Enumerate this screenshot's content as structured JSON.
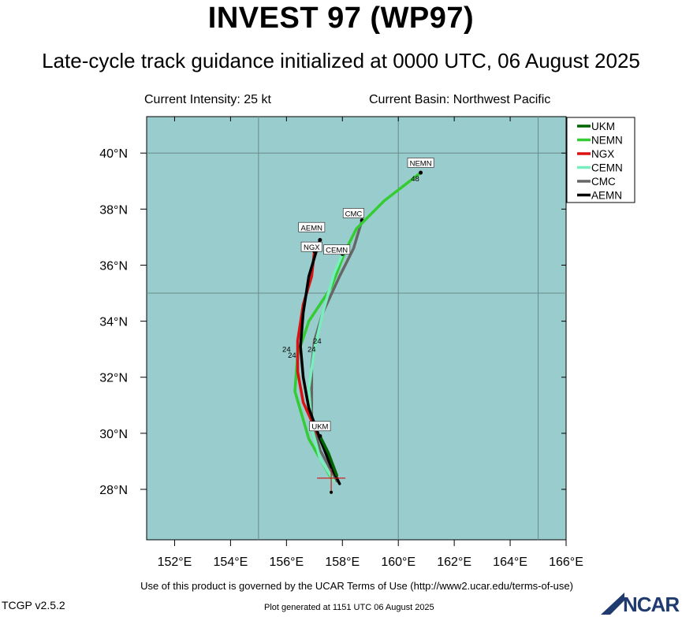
{
  "header": {
    "title": "INVEST 97 (WP97)",
    "subtitle": "Late-cycle track guidance initialized at 0000 UTC, 06 August 2025",
    "intensity": "Current Intensity: 25 kt",
    "basin": "Current Basin: Northwest Pacific"
  },
  "map": {
    "lon_range": [
      151,
      166
    ],
    "lat_range": [
      26.2,
      41.3
    ],
    "lon_ticks": [
      "152°E",
      "154°E",
      "156°E",
      "158°E",
      "160°E",
      "162°E",
      "164°E",
      "166°E"
    ],
    "lat_ticks": [
      "28°N",
      "30°N",
      "32°N",
      "34°N",
      "36°N",
      "38°N",
      "40°N"
    ],
    "ocean_color": "#99cccc",
    "grid_lines_lon": [
      155,
      160,
      165
    ],
    "grid_lines_lat": [
      35,
      40
    ],
    "storm_position": {
      "lon": 157.6,
      "lat": 28.4
    }
  },
  "legend": [
    {
      "name": "UKM",
      "color": "#006400"
    },
    {
      "name": "NEMN",
      "color": "#33cc33"
    },
    {
      "name": "NGX",
      "color": "#dd1111"
    },
    {
      "name": "CEMN",
      "color": "#77eebb"
    },
    {
      "name": "CMC",
      "color": "#666666"
    },
    {
      "name": "AEMN",
      "color": "#000000"
    }
  ],
  "tracks": [
    {
      "name": "CMC",
      "color": "#666666",
      "points": [
        [
          157.8,
          28.3
        ],
        [
          157.2,
          29.4
        ],
        [
          156.9,
          30.6
        ],
        [
          156.9,
          32.4
        ],
        [
          157.0,
          33.3
        ],
        [
          157.3,
          34.3
        ],
        [
          157.9,
          35.6
        ],
        [
          158.4,
          36.6
        ],
        [
          158.7,
          37.6
        ]
      ]
    },
    {
      "name": "NEMN",
      "color": "#33cc33",
      "points": [
        [
          157.6,
          28.4
        ],
        [
          156.8,
          29.8
        ],
        [
          156.3,
          31.5
        ],
        [
          156.4,
          32.8
        ],
        [
          156.8,
          34.0
        ],
        [
          157.6,
          35.2
        ],
        [
          158.1,
          36.5
        ],
        [
          158.5,
          37.3
        ],
        [
          159.5,
          38.3
        ],
        [
          160.8,
          39.3
        ]
      ],
      "label_hour": "48"
    },
    {
      "name": "CEMN",
      "color": "#77eebb",
      "points": [
        [
          157.7,
          28.3
        ],
        [
          157.2,
          29.1
        ],
        [
          156.9,
          30.2
        ],
        [
          156.8,
          31.6
        ],
        [
          157.0,
          33.0
        ],
        [
          157.3,
          34.3
        ],
        [
          157.7,
          35.7
        ],
        [
          158.0,
          36.4
        ]
      ]
    },
    {
      "name": "NGX",
      "color": "#dd1111",
      "points": [
        [
          157.8,
          28.4
        ],
        [
          157.5,
          29.2
        ],
        [
          157.1,
          30.0
        ],
        [
          156.6,
          31.1
        ],
        [
          156.4,
          32.2
        ],
        [
          156.4,
          33.3
        ],
        [
          156.6,
          34.6
        ],
        [
          156.9,
          35.6
        ],
        [
          157.0,
          36.5
        ]
      ]
    },
    {
      "name": "AEMN",
      "color": "#000000",
      "points": [
        [
          157.9,
          28.2
        ],
        [
          157.6,
          28.8
        ],
        [
          157.2,
          29.8
        ],
        [
          156.8,
          30.9
        ],
        [
          156.6,
          32.0
        ],
        [
          156.5,
          33.1
        ],
        [
          156.6,
          34.3
        ],
        [
          156.8,
          35.6
        ],
        [
          157.1,
          36.6
        ],
        [
          157.2,
          36.9
        ]
      ]
    },
    {
      "name": "UKM",
      "color": "#006400",
      "points": [
        [
          157.8,
          28.5
        ],
        [
          157.5,
          29.3
        ],
        [
          157.2,
          29.9
        ]
      ]
    }
  ],
  "track_labels": [
    {
      "text": "NEMN",
      "lon": 160.8,
      "lat": 39.6
    },
    {
      "text": "CMC",
      "lon": 158.4,
      "lat": 37.8
    },
    {
      "text": "AEMN",
      "lon": 156.9,
      "lat": 37.3
    },
    {
      "text": "NGX",
      "lon": 156.9,
      "lat": 36.6
    },
    {
      "text": "CEMN",
      "lon": 157.8,
      "lat": 36.5
    },
    {
      "text": "UKM",
      "lon": 157.2,
      "lat": 30.2
    }
  ],
  "hour_labels": [
    {
      "text": "24",
      "lon": 157.1,
      "lat": 33.2
    },
    {
      "text": "24",
      "lon": 156.0,
      "lat": 32.9
    },
    {
      "text": "24",
      "lon": 156.9,
      "lat": 32.9
    },
    {
      "text": "24",
      "lon": 156.2,
      "lat": 32.7
    },
    {
      "text": "48",
      "lon": 160.6,
      "lat": 39.0
    }
  ],
  "footer": {
    "terms": "Use of this product is governed by the UCAR Terms of Use (http://www2.ucar.edu/terms-of-use)",
    "version": "TCGP v2.5.2",
    "generated": "Plot generated at 1151 UTC   06 August 2025",
    "logo": "NCAR"
  }
}
